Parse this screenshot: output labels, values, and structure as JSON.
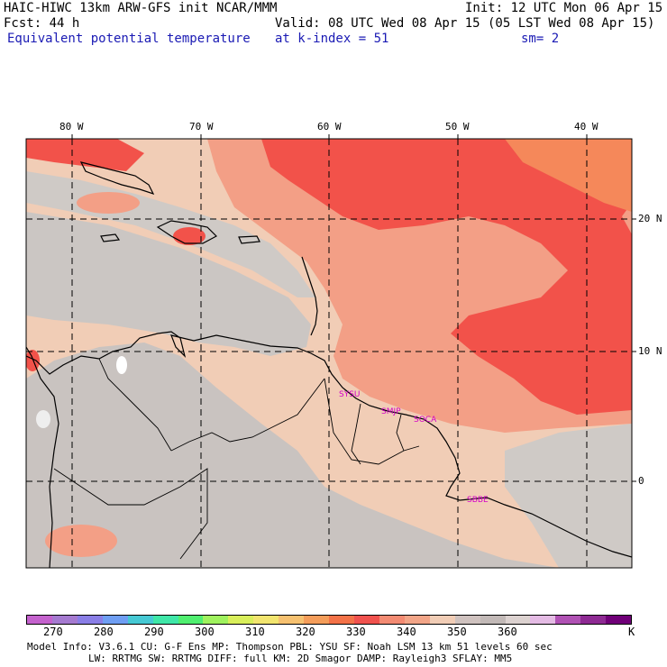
{
  "header": {
    "model": "HAIC-HIWC 13km ARW-GFS init   NCAR/MMM",
    "init": "Init: 12 UTC Mon 06 Apr 15",
    "fcst": "Fcst:   44 h",
    "valid": "Valid: 08 UTC Wed 08 Apr 15 (05 LST Wed 08 Apr 15)",
    "field": "Equivalent potential temperature",
    "level": "at k-index =  51",
    "smooth": "sm= 2"
  },
  "map": {
    "lon_labels": [
      "80 W",
      "70 W",
      "60 W",
      "50 W",
      "40 W"
    ],
    "lat_labels": [
      "20 N",
      "10 N",
      "0"
    ],
    "stations": [
      "SYSU",
      "SMJP",
      "SOCA",
      "SBBE"
    ],
    "colors": {
      "red": "#f2524a",
      "salmon": "#f39f86",
      "light_peach": "#f1cdb6",
      "grey": "#cfcac6",
      "mauve_grey": "#c2b9b7",
      "orange": "#f5885a",
      "station": "#d400c8"
    }
  },
  "colorbar": {
    "colors": [
      "#c462cd",
      "#a57ad0",
      "#8a7ee6",
      "#6f9ef3",
      "#46c9d4",
      "#3fe7a8",
      "#50ef70",
      "#9ff25e",
      "#d9ef5b",
      "#f2e56f",
      "#f6c170",
      "#f49d5a",
      "#f37248",
      "#f0524e",
      "#f38b73",
      "#f2a588",
      "#f1cdb6",
      "#cfc2bf",
      "#c2b9b7",
      "#dcd2d0",
      "#e4bbe4",
      "#b052b4",
      "#8e2a93",
      "#700078"
    ],
    "labels": [
      "270",
      "280",
      "290",
      "300",
      "310",
      "320",
      "330",
      "340",
      "350",
      "360"
    ],
    "unit": "K"
  },
  "footer": {
    "line1": "Model Info: V3.6.1    CU: G-F Ens MP: Thompson    PBL: YSU     SF: Noah LSM    13 km    51 levels   60 sec",
    "line2": "LW: RRTMG   SW: RRTMG  DIFF: full   KM: 2D Smagor DAMP: Rayleigh3  SFLAY: MM5"
  }
}
